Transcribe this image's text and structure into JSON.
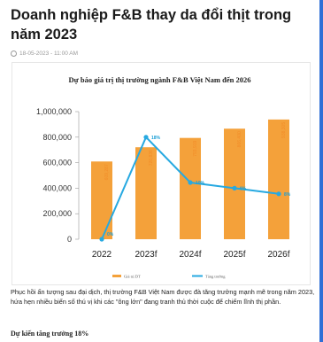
{
  "article": {
    "title": "Doanh nghiệp F&B thay da đổi thịt trong năm 2023",
    "date": "18-05-2023 - 11:00 AM",
    "paragraph": "Phục hồi ấn tượng sau đại dịch, thị trường F&B Việt Nam được đà tăng trưởng mạnh mẽ trong năm 2023, hứa hẹn nhiều biến số thú vị khi các \"ông lớn\" đang tranh thủ thời cuộc để chiếm lĩnh thị phần.",
    "subheading": "Dự kiến tăng trưởng 18%"
  },
  "chart_data": {
    "type": "bar",
    "title": "Dự báo giá trị thị trường ngành F&B Việt Nam đến 2026",
    "categories": [
      "2022",
      "2023f",
      "2024f",
      "2025f",
      "2026f"
    ],
    "ylim": [
      0,
      1000000
    ],
    "yticks": [
      "0",
      "200,000",
      "400,000",
      "600,000",
      "800,000",
      "1,000,000"
    ],
    "series": [
      {
        "name": "Giá trị DT",
        "type": "bar",
        "color": "#f4a13a",
        "values": [
          609287,
          720836,
          793919,
          866400,
          938305
        ],
        "labels": [
          "609,287",
          "720,836",
          "793,919",
          "866,400",
          "938,305"
        ]
      },
      {
        "name": "Tăng trưởng",
        "type": "line",
        "color": "#27a9e1",
        "values": [
          0,
          18,
          10,
          9,
          8
        ],
        "labels": [
          "0%",
          "18%",
          "10%",
          "9%",
          "8%"
        ]
      }
    ]
  }
}
